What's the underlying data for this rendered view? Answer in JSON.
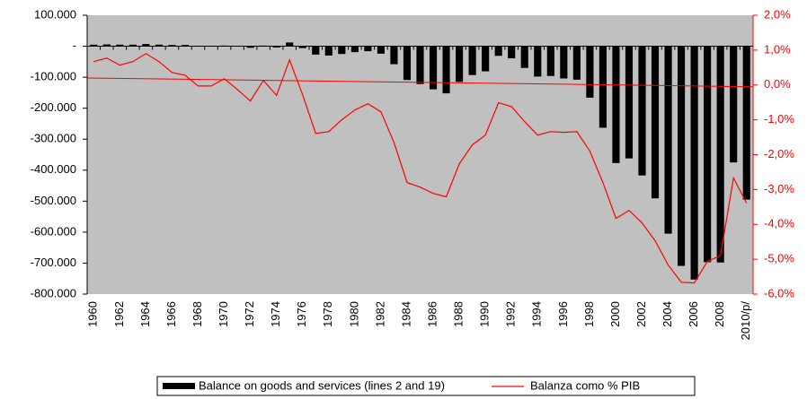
{
  "chart_data": {
    "type": "bar_line",
    "categories": [
      "1960",
      null,
      "1962",
      null,
      "1964",
      null,
      "1966",
      null,
      "1968",
      null,
      "1970",
      null,
      "1972",
      null,
      "1974",
      null,
      "1976",
      null,
      "1978",
      null,
      "1980",
      null,
      "1982",
      null,
      "1984",
      null,
      "1986",
      null,
      "1988",
      null,
      "1990",
      null,
      "1992",
      null,
      "1994",
      null,
      "1996",
      null,
      "1998",
      null,
      "2000",
      null,
      "2002",
      null,
      "2004",
      null,
      "2006",
      null,
      "2008",
      null,
      "2010/p/"
    ],
    "series": [
      {
        "name": "Balance on goods and services (lines 2 and 19)",
        "color": "#000000",
        "kind": "bar",
        "values": [
          5000,
          6000,
          5000,
          5000,
          7000,
          5000,
          4000,
          4000,
          1000,
          0,
          2000,
          -1000,
          -5000,
          2000,
          -4000,
          12000,
          -6000,
          -27000,
          -30000,
          -25000,
          -19000,
          -16000,
          -24000,
          -58000,
          -109000,
          -122000,
          -139000,
          -152000,
          -115000,
          -93000,
          -81000,
          -31000,
          -39000,
          -70000,
          -98000,
          -96000,
          -104000,
          -108000,
          -166000,
          -263000,
          -377000,
          -362000,
          -417000,
          -491000,
          -605000,
          -709000,
          -753000,
          -697000,
          -698000,
          -375000,
          -495000
        ]
      },
      {
        "name": "Balanza como % PIB",
        "color": "#ff0000",
        "kind": "line",
        "axis": "y2",
        "values": [
          0.67,
          0.77,
          0.57,
          0.67,
          0.9,
          0.67,
          0.36,
          0.28,
          -0.03,
          -0.03,
          0.18,
          -0.13,
          -0.46,
          0.13,
          -0.3,
          0.72,
          -0.28,
          -1.39,
          -1.34,
          -1.0,
          -0.72,
          -0.54,
          -0.77,
          -1.65,
          -2.8,
          -2.93,
          -3.11,
          -3.21,
          -2.26,
          -1.72,
          -1.44,
          -0.51,
          -0.62,
          -1.05,
          -1.44,
          -1.34,
          -1.36,
          -1.34,
          -1.9,
          -2.8,
          -3.83,
          -3.6,
          -3.96,
          -4.47,
          -5.17,
          -5.66,
          -5.68,
          -5.06,
          -4.9,
          -2.67,
          -3.39
        ]
      }
    ],
    "trendline": {
      "axis": "y2",
      "color": "#ff0000",
      "values": [
        0.2,
        -0.05
      ]
    },
    "ylim": [
      -800000,
      100000
    ],
    "yticks": [
      {
        "value": -800000,
        "label": "-800.000"
      },
      {
        "value": -700000,
        "label": "-700.000"
      },
      {
        "value": -600000,
        "label": "-600.000"
      },
      {
        "value": -500000,
        "label": "-500.000"
      },
      {
        "value": -400000,
        "label": "-400.000"
      },
      {
        "value": -300000,
        "label": "-300.000"
      },
      {
        "value": -200000,
        "label": "-200.000"
      },
      {
        "value": -100000,
        "label": "-100.000"
      },
      {
        "value": 0,
        "label": "-"
      },
      {
        "value": 100000,
        "label": "100.000"
      }
    ],
    "y2lim": [
      -6,
      2
    ],
    "y2ticks": [
      {
        "value": -6,
        "label": "-6,0%"
      },
      {
        "value": -5,
        "label": "-5,0%"
      },
      {
        "value": -4,
        "label": "-4,0%"
      },
      {
        "value": -3,
        "label": "-3,0%"
      },
      {
        "value": -2,
        "label": "-2,0%"
      },
      {
        "value": -1,
        "label": "-1,0%"
      },
      {
        "value": 0,
        "label": "0,0%"
      },
      {
        "value": 1,
        "label": "1,0%"
      },
      {
        "value": 2,
        "label": "2,0%"
      }
    ],
    "plot_background": "#c0c0c0",
    "legend": "bottom"
  }
}
